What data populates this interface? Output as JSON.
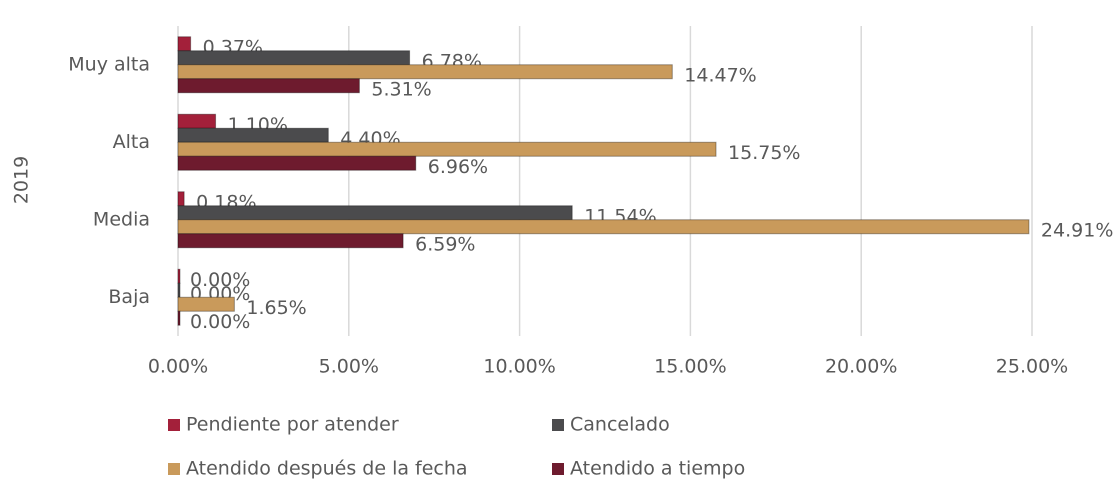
{
  "chart_data": {
    "type": "hbar",
    "y_label": "2019",
    "categories": [
      "Muy alta",
      "Alta",
      "Media",
      "Baja"
    ],
    "series": [
      {
        "name": "Pendiente por atender",
        "color": "#a3203a",
        "values": [
          0.37,
          1.1,
          0.18,
          0
        ],
        "value_labels": [
          "0.37%",
          "1.10%",
          "0.18%",
          "0.00%"
        ]
      },
      {
        "name": "Cancelado",
        "color": "#4b4b4d",
        "values": [
          6.78,
          4.4,
          11.54,
          0
        ],
        "value_labels": [
          "6.78%",
          "4.40%",
          "11.54%",
          "0.00%"
        ]
      },
      {
        "name": "Atendido después de la fecha",
        "color": "#c99a5b",
        "values": [
          14.47,
          15.75,
          24.91,
          1.65
        ],
        "value_labels": [
          "14.47%",
          "15.75%",
          "24.91%",
          "1.65%"
        ]
      },
      {
        "name": "Atendido a tiempo",
        "color": "#6e1b2e",
        "values": [
          5.31,
          6.96,
          6.59,
          0
        ],
        "value_labels": [
          "5.31%",
          "6.96%",
          "6.59%",
          "0.00%"
        ]
      }
    ],
    "xlim": [
      0,
      25
    ],
    "xticks": [
      {
        "value": 0,
        "label": "0.00%"
      },
      {
        "value": 5,
        "label": "5.00%"
      },
      {
        "value": 10,
        "label": "10.00%"
      },
      {
        "value": 15,
        "label": "15.00%"
      },
      {
        "value": 20,
        "label": "20.00%"
      },
      {
        "value": 25,
        "label": "25.00%"
      }
    ],
    "grid": true
  }
}
